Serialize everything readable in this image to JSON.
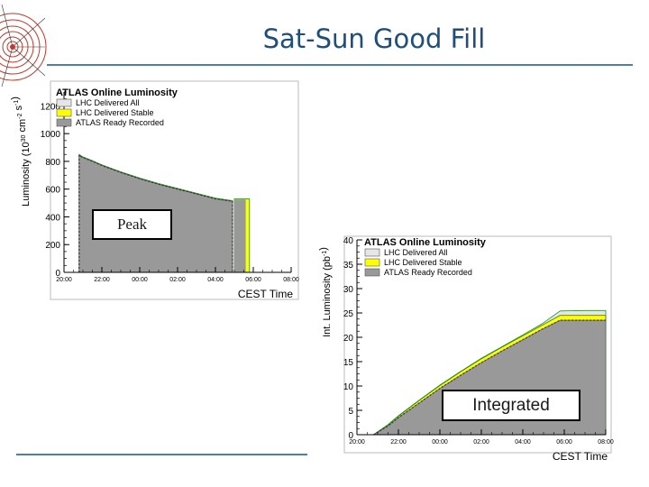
{
  "slide": {
    "title": "Sat-Sun Good Fill",
    "peak_label": "Peak",
    "integrated_label": "Integrated"
  },
  "colors": {
    "title": "#1f4e79",
    "rule": "#4f7fa8",
    "delivered_all": "#e6e6e6",
    "delivered_stable": "#ffff00",
    "recorded": "#999999",
    "edge_green": "#2e8b2e"
  },
  "chart_data": [
    {
      "type": "area",
      "title": "ATLAS Online Luminosity",
      "xlabel": "CEST Time",
      "ylabel": "Luminosity (10^30 cm^-2 s^-1)",
      "ylabel_parts": {
        "main": "Luminosity (10",
        "exp1": "30",
        "mid": " cm",
        "exp2": "-2",
        "mid2": " s",
        "exp3": "-1",
        "end": ")"
      },
      "x_ticks": [
        "20:00",
        "22:00",
        "00:00",
        "02:00",
        "04:00",
        "06:00",
        "08:00"
      ],
      "x_range_hours": [
        0,
        12
      ],
      "ylim": [
        0,
        1300
      ],
      "y_ticks": [
        0,
        200,
        400,
        600,
        800,
        1000,
        1200
      ],
      "legend_position": "top-left",
      "series": [
        {
          "name": "LHC Delivered All",
          "color": "#e6e6e6"
        },
        {
          "name": "LHC Delivered Stable",
          "color": "#ffff00"
        },
        {
          "name": "ATLAS Ready Recorded",
          "color": "#999999"
        }
      ],
      "x": [
        0.8,
        0.8,
        0.95,
        1.5,
        2.0,
        3.0,
        4.0,
        5.0,
        6.0,
        7.0,
        8.0,
        8.9,
        8.9
      ],
      "recorded": [
        0,
        845,
        830,
        800,
        770,
        720,
        675,
        635,
        600,
        565,
        530,
        512,
        0
      ],
      "delivered_stable": [
        0,
        850,
        835,
        805,
        775,
        725,
        680,
        640,
        605,
        570,
        535,
        517,
        0
      ],
      "late_block": {
        "x_start": 9.0,
        "x_end": 9.8,
        "recorded": 525,
        "delivered_stable": 530
      }
    },
    {
      "type": "area",
      "title": "ATLAS Online Luminosity",
      "xlabel": "CEST Time",
      "ylabel": "Int. Luminosity (pb^-1)",
      "ylabel_parts": {
        "main": "Int. Luminosity (pb",
        "exp1": "-1",
        "end": ")"
      },
      "x_ticks": [
        "20:00",
        "22:00",
        "00:00",
        "02:00",
        "04:00",
        "06:00",
        "08:00"
      ],
      "x_range_hours": [
        0,
        12
      ],
      "ylim": [
        0,
        40
      ],
      "y_ticks": [
        0,
        5,
        10,
        15,
        20,
        25,
        30,
        35,
        40
      ],
      "legend_position": "top-left",
      "series": [
        {
          "name": "LHC Delivered All",
          "color": "#e6e6e6"
        },
        {
          "name": "LHC Delivered Stable",
          "color": "#ffff00"
        },
        {
          "name": "ATLAS Ready Recorded",
          "color": "#999999"
        }
      ],
      "x": [
        0.8,
        1.5,
        2.0,
        3.0,
        4.0,
        5.0,
        6.0,
        7.0,
        8.0,
        8.9,
        9.8,
        11.0,
        12.0
      ],
      "recorded": [
        0,
        1.8,
        3.5,
        6.5,
        9.5,
        12.2,
        14.8,
        17.2,
        19.5,
        21.6,
        23.5,
        23.5,
        23.5
      ],
      "delivered_stable": [
        0,
        2.0,
        3.8,
        7.0,
        10.1,
        12.9,
        15.6,
        18.0,
        20.3,
        22.4,
        24.5,
        24.5,
        24.5
      ],
      "delivered_all": [
        0,
        2.1,
        3.9,
        7.1,
        10.2,
        13.0,
        15.7,
        18.1,
        20.5,
        22.7,
        25.4,
        25.5,
        25.5
      ]
    }
  ]
}
